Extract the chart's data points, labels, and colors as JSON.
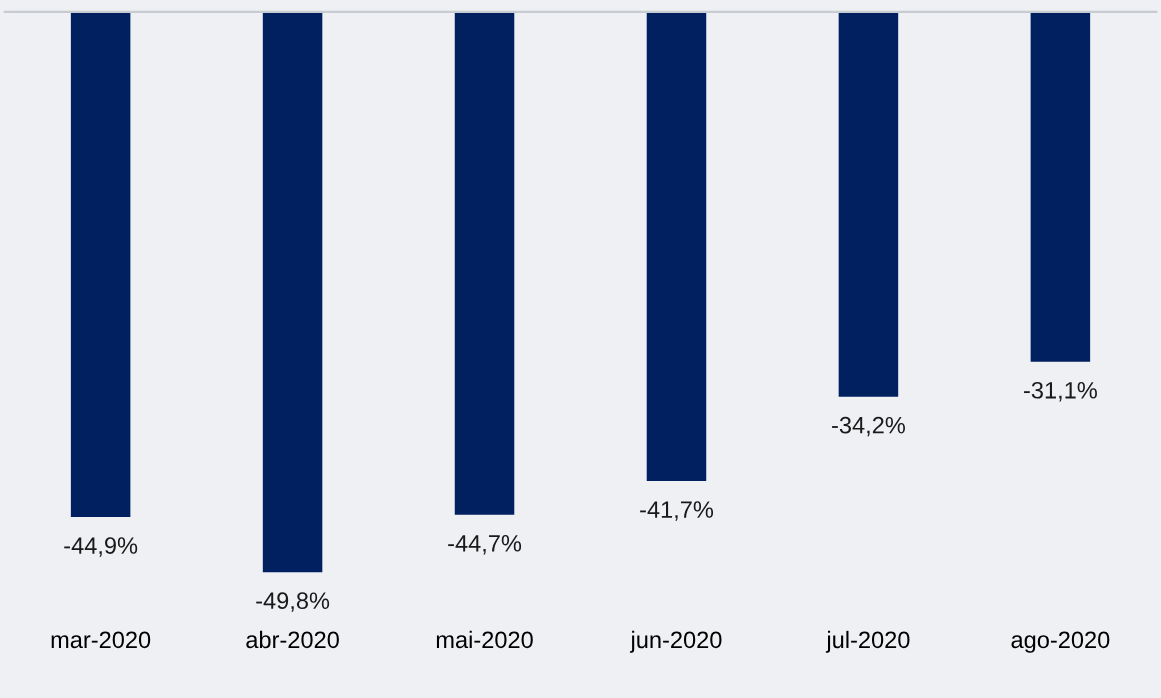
{
  "chart_data": {
    "type": "bar",
    "categories": [
      "mar-2020",
      "abr-2020",
      "mai-2020",
      "jun-2020",
      "jul-2020",
      "ago-2020"
    ],
    "values": [
      -44.9,
      -49.8,
      -44.7,
      -41.7,
      -34.2,
      -31.1
    ],
    "value_labels": [
      "-44,9%",
      "-49,8%",
      "-44,7%",
      "-41,7%",
      "-34,2%",
      "-31,1%"
    ],
    "color": "#002060",
    "tick_labels": "x",
    "grid": false,
    "legend": false
  }
}
